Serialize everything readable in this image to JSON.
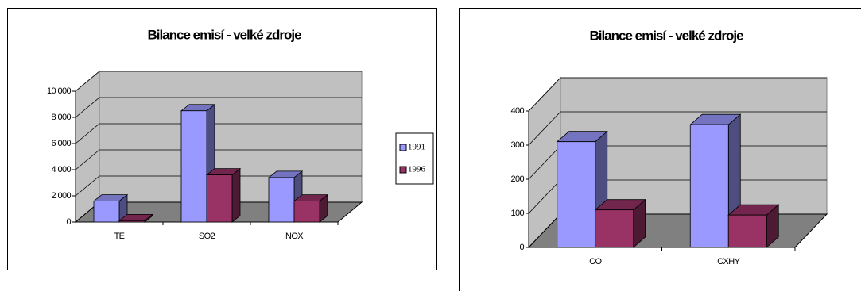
{
  "chart_data": [
    {
      "type": "bar3d",
      "title": "Bilance emisí - velké zdroje",
      "categories": [
        "TE",
        "SO2",
        "NOX"
      ],
      "series": [
        {
          "name": "1991",
          "color": "#9999ff",
          "values": [
            1600,
            8500,
            3400
          ]
        },
        {
          "name": "1996",
          "color": "#993366",
          "values": [
            100,
            3600,
            1600
          ]
        }
      ],
      "ylim": [
        0,
        10000
      ],
      "yticks": [
        0,
        {
          "value": 2000,
          "label": "2 000"
        },
        {
          "value": 4000,
          "label": "4 000"
        },
        {
          "value": 6000,
          "label": "6 000"
        },
        {
          "value": 8000,
          "label": "8 000"
        },
        {
          "value": 10000,
          "label": "10 000"
        }
      ],
      "grid": true,
      "legend": "right"
    },
    {
      "type": "bar3d",
      "title": "Bilance emisí - velké zdroje",
      "categories": [
        "CO",
        "CXHY"
      ],
      "series": [
        {
          "color": "#9999ff",
          "values": [
            310,
            360
          ]
        },
        {
          "color": "#993366",
          "values": [
            110,
            95
          ]
        }
      ],
      "ylim": [
        0,
        400
      ],
      "yticks": [
        0,
        100,
        200,
        300,
        400
      ],
      "grid": true
    }
  ]
}
